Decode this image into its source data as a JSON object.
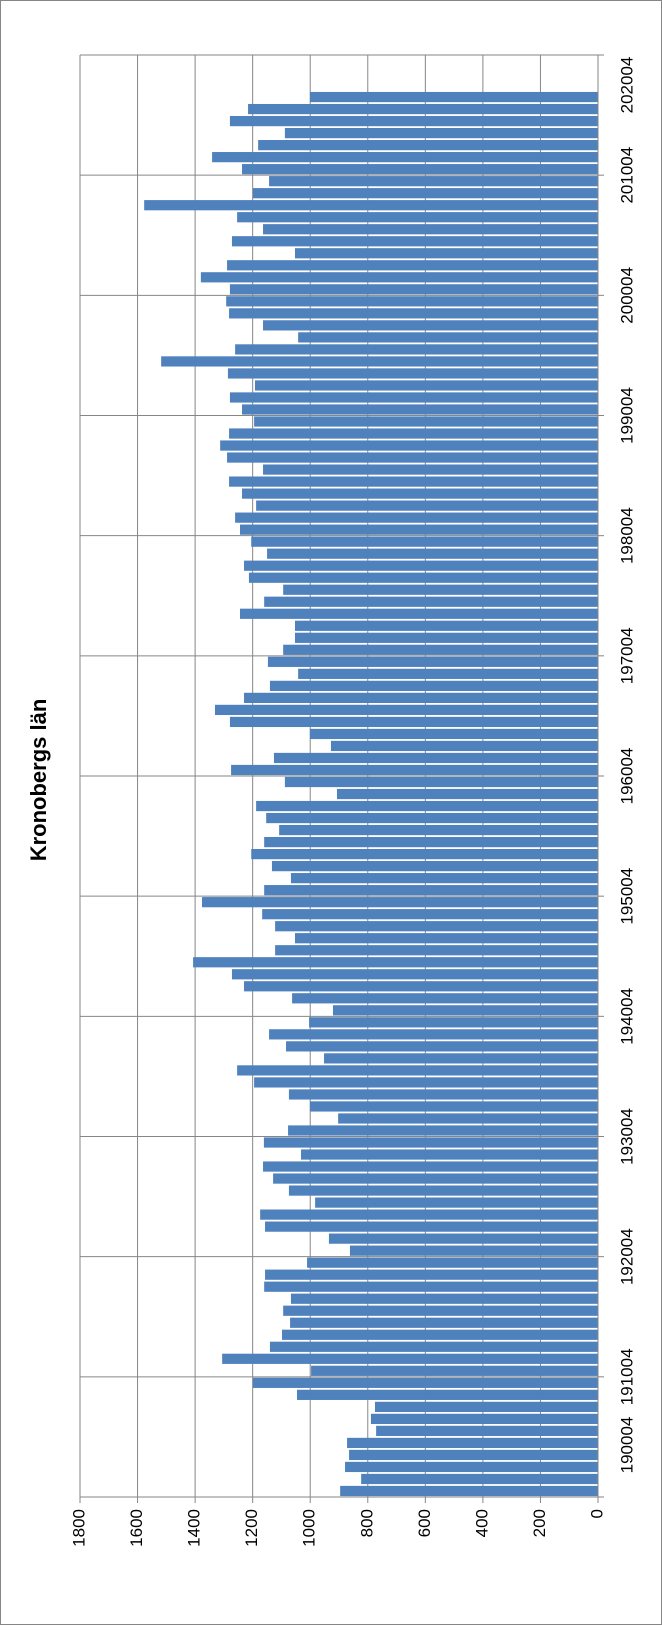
{
  "chart_data": {
    "type": "bar",
    "title": "Kronobergs län",
    "orientation": "rotated",
    "color": "#4f81bd",
    "grid": true,
    "x": [
      1900,
      1901,
      1902,
      1903,
      1904,
      1905,
      1906,
      1907,
      1908,
      1909,
      1910,
      1911,
      1912,
      1913,
      1914,
      1915,
      1916,
      1917,
      1918,
      1919,
      1920,
      1921,
      1922,
      1923,
      1924,
      1925,
      1926,
      1927,
      1928,
      1929,
      1930,
      1931,
      1932,
      1933,
      1934,
      1935,
      1936,
      1937,
      1938,
      1939,
      1940,
      1941,
      1942,
      1943,
      1944,
      1945,
      1946,
      1947,
      1948,
      1949,
      1950,
      1951,
      1952,
      1953,
      1954,
      1955,
      1956,
      1957,
      1958,
      1959,
      1960,
      1961,
      1962,
      1963,
      1964,
      1965,
      1966,
      1967,
      1968,
      1969,
      1970,
      1971,
      1972,
      1973,
      1974,
      1975,
      1976,
      1977,
      1978,
      1979,
      1980,
      1981,
      1982,
      1983,
      1984,
      1985,
      1986,
      1987,
      1988,
      1989,
      1990,
      1991,
      1992,
      1993,
      1994,
      1995,
      1996,
      1997,
      1998,
      1999,
      2000,
      2001,
      2002,
      2003,
      2004,
      2005,
      2006,
      2007,
      2008,
      2009,
      2010,
      2011,
      2012,
      2013,
      2014,
      2015,
      2016
    ],
    "values": [
      896,
      823,
      879,
      865,
      872,
      771,
      789,
      775,
      1046,
      1199,
      997,
      1306,
      1140,
      1098,
      1070,
      1094,
      1067,
      1160,
      1157,
      1011,
      862,
      935,
      1157,
      1174,
      983,
      1074,
      1129,
      1164,
      1032,
      1161,
      1077,
      903,
      1001,
      1074,
      1195,
      1254,
      952,
      1084,
      1143,
      1004,
      921,
      1063,
      1230,
      1272,
      1407,
      1122,
      1053,
      1122,
      1167,
      1376,
      1160,
      1067,
      1133,
      1205,
      1160,
      1108,
      1153,
      1188,
      907,
      1088,
      1275,
      1126,
      928,
      1001,
      1279,
      1331,
      1230,
      1140,
      1042,
      1147,
      1094,
      1053,
      1053,
      1244,
      1160,
      1094,
      1213,
      1230,
      1150,
      1205,
      1244,
      1261,
      1188,
      1237,
      1282,
      1164,
      1289,
      1313,
      1282,
      1195,
      1237,
      1279,
      1192,
      1286,
      1518,
      1261,
      1042,
      1164,
      1282,
      1292,
      1279,
      1380,
      1289,
      1053,
      1272,
      1164,
      1254,
      1577,
      1199,
      1143,
      1237,
      1341,
      1181,
      1088,
      1279,
      1216,
      1001
    ],
    "xlim": [
      1900,
      2020
    ],
    "xticks": [
      {
        "value": 1900,
        "label": "190004"
      },
      {
        "value": 1910,
        "label": "191004"
      },
      {
        "value": 1920,
        "label": "192004"
      },
      {
        "value": 1930,
        "label": "193004"
      },
      {
        "value": 1940,
        "label": "194004"
      },
      {
        "value": 1950,
        "label": "195004"
      },
      {
        "value": 1960,
        "label": "196004"
      },
      {
        "value": 1970,
        "label": "197004"
      },
      {
        "value": 1980,
        "label": "198004"
      },
      {
        "value": 1990,
        "label": "199004"
      },
      {
        "value": 2000,
        "label": "200004"
      },
      {
        "value": 2010,
        "label": "201004"
      },
      {
        "value": 2020,
        "label": "202004"
      }
    ],
    "ylim": [
      0,
      1800
    ],
    "yticks": [
      0,
      200,
      400,
      600,
      800,
      1000,
      1200,
      1400,
      1600,
      1800
    ]
  }
}
